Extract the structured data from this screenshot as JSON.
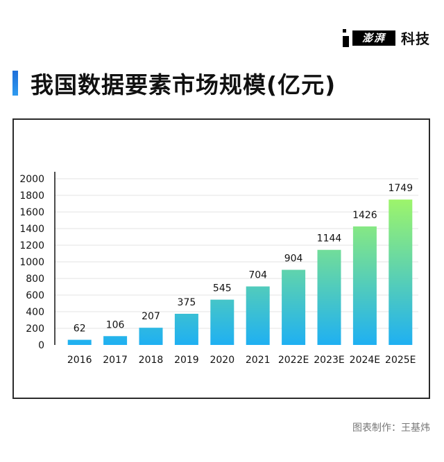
{
  "header": {
    "logo_label": "澎湃",
    "logo_suffix": "科技",
    "title": "我国数据要素市场规模(亿元)"
  },
  "footer": {
    "credit": "图表制作：王基炜"
  },
  "colors": {
    "title_bar": "#1e6fd9",
    "bar_top": "#9ef56a",
    "bar_bottom": "#1fb0f2",
    "grid": "#e3e3e3"
  },
  "chart_data": {
    "type": "bar",
    "categories": [
      "2016",
      "2017",
      "2018",
      "2019",
      "2020",
      "2021",
      "2022E",
      "2023E",
      "2024E",
      "2025E"
    ],
    "values": [
      62,
      106,
      207,
      375,
      545,
      704,
      904,
      1144,
      1426,
      1749
    ],
    "data_labels": [
      "62",
      "106",
      "207",
      "375",
      "545",
      "704",
      "904",
      "1144",
      "1426",
      "1749"
    ],
    "yticks": [
      "0",
      "200",
      "400",
      "600",
      "800",
      "1000",
      "1200",
      "1400",
      "1600",
      "1800",
      "2000"
    ],
    "ylim": [
      0,
      2000
    ],
    "grid": true,
    "legend": "none"
  }
}
